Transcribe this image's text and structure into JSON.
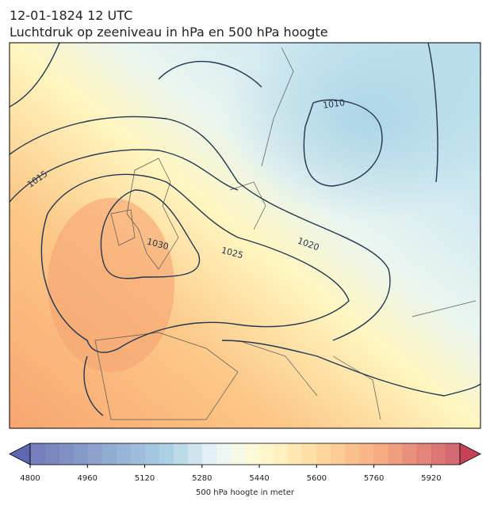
{
  "header": {
    "title_line1": "12-01-1824 12 UTC",
    "title_line2": "Luchtdruk op zeeniveau in hPa en 500 hPa hoogte"
  },
  "map": {
    "contour_labels": [
      "1010",
      "1015",
      "1020",
      "1025",
      "1030"
    ]
  },
  "colorbar": {
    "label": "500 hPa hoogte in meter",
    "range": [
      4800,
      6000
    ],
    "level_step": 40,
    "ticks": [
      4800,
      4960,
      5120,
      5280,
      5440,
      5600,
      5760,
      5920
    ]
  }
}
